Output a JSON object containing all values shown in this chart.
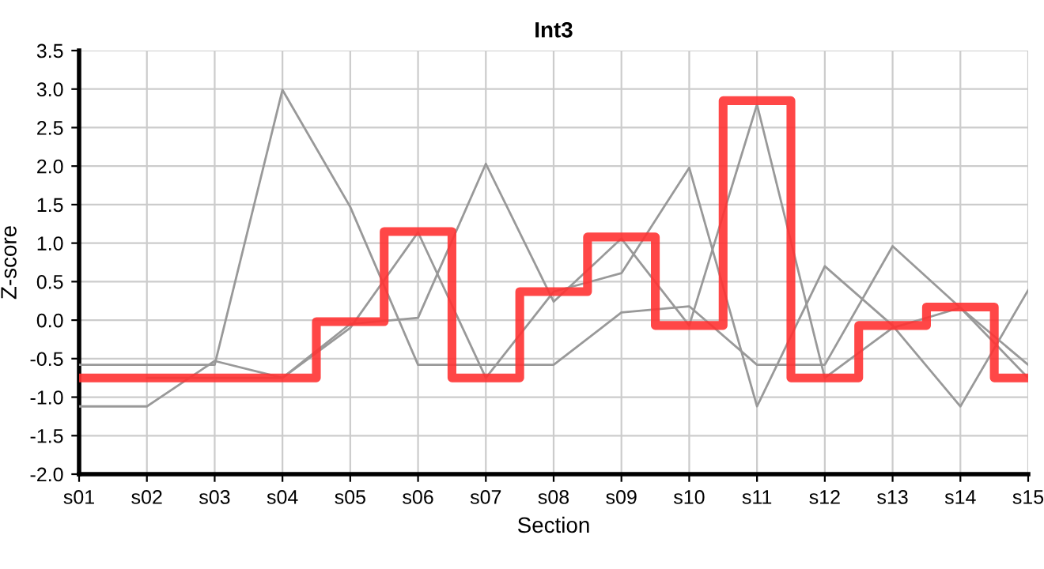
{
  "chart_data": {
    "type": "line",
    "title": "Int3",
    "xlabel": "Section",
    "ylabel": "Z-score",
    "categories": [
      "s01",
      "s02",
      "s03",
      "s04",
      "s05",
      "s06",
      "s07",
      "s08",
      "s09",
      "s10",
      "s11",
      "s12",
      "s13",
      "s14",
      "s15"
    ],
    "series": [
      {
        "color": "#999999",
        "values": [
          -0.58,
          -0.58,
          -0.58,
          2.99,
          1.47,
          -0.58,
          -0.58,
          -0.58,
          0.1,
          0.18,
          -0.58,
          -0.58,
          0.96,
          0.16,
          -0.75
        ]
      },
      {
        "color": "#999999",
        "values": [
          -1.12,
          -1.12,
          -0.53,
          -0.75,
          -0.1,
          1.14,
          -0.75,
          0.37,
          0.61,
          1.98,
          -1.12,
          0.7,
          -0.07,
          -1.12,
          0.39
        ]
      },
      {
        "color": "#999999",
        "values": [
          null,
          -0.75,
          -0.75,
          -0.75,
          -0.05,
          0.03,
          2.03,
          0.24,
          1.06,
          -0.07,
          2.8,
          -0.75,
          -0.1,
          0.16,
          -0.58
        ]
      },
      {
        "type": "step",
        "color": "#ff3333",
        "values": [
          -0.75,
          -0.75,
          -0.75,
          -0.75,
          -0.02,
          1.15,
          -0.75,
          0.37,
          1.08,
          -0.07,
          2.85,
          -0.75,
          -0.07,
          0.17,
          -0.75
        ]
      }
    ],
    "ylim": [
      -2.0,
      3.5
    ],
    "yticks": [
      {
        "value": -2,
        "label": "-2.0"
      },
      {
        "value": -1.5,
        "label": "-1.5"
      },
      {
        "value": -1,
        "label": "-1.0"
      },
      {
        "value": -0.5,
        "label": "-0.5"
      },
      {
        "value": 0,
        "label": "0.0"
      },
      {
        "value": 0.5,
        "label": "0.5"
      },
      {
        "value": 1,
        "label": "1.0"
      },
      {
        "value": 1.5,
        "label": "1.5"
      },
      {
        "value": 2,
        "label": "2.0"
      },
      {
        "value": 2.5,
        "label": "2.5"
      },
      {
        "value": 3,
        "label": "3.0"
      },
      {
        "value": 3.5,
        "label": "3.5"
      }
    ],
    "grid": true
  }
}
